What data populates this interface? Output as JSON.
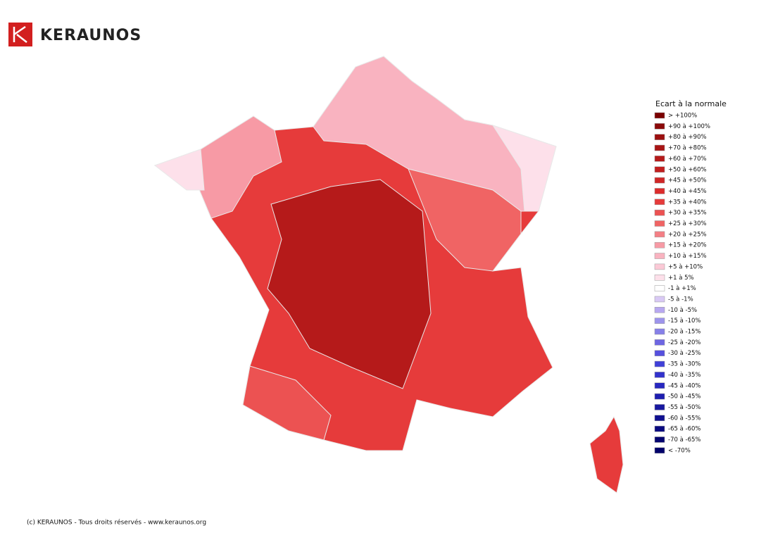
{
  "header": {
    "logo_text": "KERAUNOS"
  },
  "legend": {
    "title": "Ecart à la normale",
    "items": [
      {
        "label": "> +100%",
        "color": "#7a0000"
      },
      {
        "label": "+90 à +100%",
        "color": "#8b0a0a"
      },
      {
        "label": "+80 à +90%",
        "color": "#9c1010"
      },
      {
        "label": "+70 à +80%",
        "color": "#a81414"
      },
      {
        "label": "+60 à +70%",
        "color": "#b51a1a"
      },
      {
        "label": "+50 à +60%",
        "color": "#c21f1f"
      },
      {
        "label": "+45 à +50%",
        "color": "#d02626"
      },
      {
        "label": "+40 à +45%",
        "color": "#dc2c2c"
      },
      {
        "label": "+35 à +40%",
        "color": "#e63b3b"
      },
      {
        "label": "+30 à +35%",
        "color": "#ec5252"
      },
      {
        "label": "+25 à +30%",
        "color": "#f06464"
      },
      {
        "label": "+20 à +25%",
        "color": "#f47f85"
      },
      {
        "label": "+15 à +20%",
        "color": "#f79aa5"
      },
      {
        "label": "+10 à +15%",
        "color": "#f9b3c0"
      },
      {
        "label": "+5 à +10%",
        "color": "#fbc9d6"
      },
      {
        "label": "+1 à 5%",
        "color": "#fde0ea"
      },
      {
        "label": "-1 à +1%",
        "color": "#ffffff"
      },
      {
        "label": "-5 à -1%",
        "color": "#d9c9f5"
      },
      {
        "label": "-10 à -5%",
        "color": "#b8a8f0"
      },
      {
        "label": "-15 à -10%",
        "color": "#9d94ec"
      },
      {
        "label": "-20 à -15%",
        "color": "#8680e8"
      },
      {
        "label": "-25 à -20%",
        "color": "#6e66e2"
      },
      {
        "label": "-30 à -25%",
        "color": "#5650de"
      },
      {
        "label": "-35 à -30%",
        "color": "#4040d8"
      },
      {
        "label": "-40 à -35%",
        "color": "#3232cc"
      },
      {
        "label": "-45 à -40%",
        "color": "#2828c0"
      },
      {
        "label": "-50 à -45%",
        "color": "#1e1eb0"
      },
      {
        "label": "-55 à -50%",
        "color": "#1818a0"
      },
      {
        "label": "-60 à -55%",
        "color": "#101090"
      },
      {
        "label": "-65 à -60%",
        "color": "#0a0a80"
      },
      {
        "label": "-70 à -65%",
        "color": "#050570"
      },
      {
        "label": "< -70%",
        "color": "#00006a"
      }
    ]
  },
  "footer": {
    "text": "(c) KERAUNOS - Tous droits réservés - www.keraunos.org"
  }
}
